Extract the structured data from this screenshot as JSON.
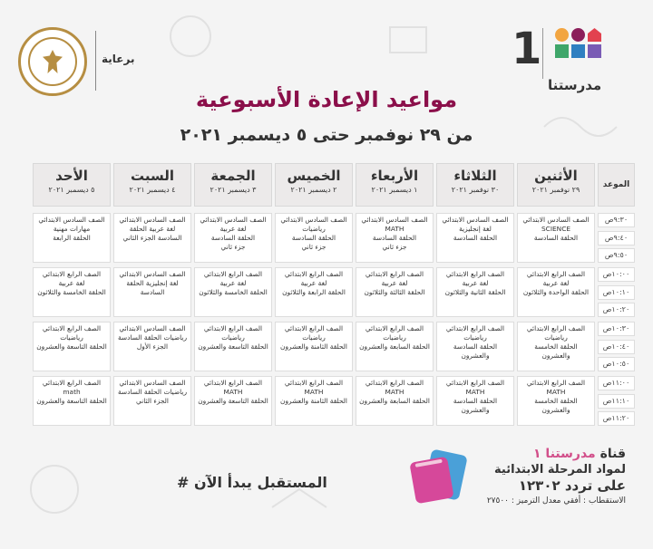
{
  "header": {
    "sponsor_label": "برعاية",
    "brand_word": "مدرستنا",
    "brand_number": "1",
    "title": "مواعيد الإعادة الأسبوعية",
    "subtitle": "من ٢٩ نوفمبر حتى ٥ ديسمبر ٢٠٢١"
  },
  "colors": {
    "title": "#8b0f4a",
    "accent_pink": "#d24f8a",
    "seal_gold": "#b68e42"
  },
  "table": {
    "time_header": "الموعد",
    "days": [
      {
        "name": "الأثنين",
        "date": "٢٩ نوفمبر ٢٠٢١"
      },
      {
        "name": "الثلاثاء",
        "date": "٣٠ نوفمبر ٢٠٢١"
      },
      {
        "name": "الأربعاء",
        "date": "١ ديسمبر ٢٠٢١"
      },
      {
        "name": "الخميس",
        "date": "٢ ديسمبر ٢٠٢١"
      },
      {
        "name": "الجمعة",
        "date": "٣ ديسمبر ٢٠٢١"
      },
      {
        "name": "السبت",
        "date": "٤ ديسمبر ٢٠٢١"
      },
      {
        "name": "الأحد",
        "date": "٥ ديسمبر ٢٠٢١"
      }
    ],
    "slots": [
      {
        "times": [
          "٩:٣٠ص",
          "٩:٤٠ص",
          "٩:٥٠ص"
        ],
        "cells": [
          "الصف السادس الابتدائي\nSCIENCE\nالحلقة السادسة",
          "الصف السادس الابتدائي\nلغة إنجليزية\nالحلقة السادسة",
          "الصف السادس الابتدائي\nMATH\nالحلقة السادسة\nجزء ثاني",
          "الصف السادس الابتدائي\nرياضيات\nالحلقة السادسة\nجزء ثاني",
          "الصف السادس الابتدائي\nلغة عربية\nالحلقة السادسة\nجزء ثاني",
          "الصف السادس الابتدائي\nلغة عربية الحلقة\nالسادسة الجزء الثاني",
          "الصف السادس الابتدائي\nمهارات مهنية\nالحلقة الرابعة"
        ]
      },
      {
        "times": [
          "١٠:٠٠ص",
          "١٠:١٠ص",
          "١٠:٢٠ص"
        ],
        "cells": [
          "الصف الرابع الابتدائي\nلغة عربية\nالحلقة الواحدة والثلاثون",
          "الصف الرابع الابتدائي\nلغة عربية\nالحلقة الثانية والثلاثون",
          "الصف الرابع الابتدائي\nلغة عربية\nالحلقة الثالثة والثلاثون",
          "الصف الرابع الابتدائي\nلغة عربية\nالحلقة الرابعة والثلاثون",
          "الصف الرابع الابتدائي\nلغة عربية\nالحلقة الخامسة والثلاثون",
          "الصف السادس الابتدائي\nلغة إنجليزية الحلقة\nالسادسة",
          "الصف الرابع الابتدائي\nلغة عربية\nالحلقة الخامسة والثلاثون"
        ]
      },
      {
        "times": [
          "١٠:٣٠ص",
          "١٠:٤٠ص",
          "١٠:٥٠ص"
        ],
        "cells": [
          "الصف الرابع الابتدائي\nرياضيات\nالحلقة الخامسة\nوالعشرون",
          "الصف الرابع الابتدائي\nرياضيات\nالحلقة السادسة\nوالعشرون",
          "الصف الرابع الابتدائي\nرياضيات\nالحلقة السابعة والعشرون",
          "الصف الرابع الابتدائي\nرياضيات\nالحلقة الثامنة والعشرون",
          "الصف الرابع الابتدائي\nرياضيات\nالحلقة التاسعة والعشرون",
          "الصف السادس الابتدائي\nرياضيات الحلقة السادسة\nالجزء الأول",
          "الصف الرابع الابتدائي\nرياضيات\nالحلقة التاسعة والعشرون"
        ]
      },
      {
        "times": [
          "١١:٠٠ص",
          "١١:١٠ص",
          "١١:٢٠ص"
        ],
        "cells": [
          "الصف الرابع الابتدائي\nMATH\nالحلقة الخامسة\nوالعشرون",
          "الصف الرابع الابتدائي\nMATH\nالحلقة السادسة\nوالعشرون",
          "الصف الرابع الابتدائي\nMATH\nالحلقة السابعة والعشرون",
          "الصف الرابع الابتدائي\nMATH\nالحلقة الثامنة والعشرون",
          "الصف الرابع الابتدائي\nMATH\nالحلقة التاسعة والعشرون",
          "الصف السادس الابتدائي\nرياضيات الحلقة السادسة\nالجزء الثاني",
          "الصف الرابع الابتدائي\nmath\nالحلقة التاسعة والعشرون"
        ]
      }
    ]
  },
  "footer": {
    "hashtag": "# المستقبل يبدأ الآن",
    "channel_prefix": "قناة",
    "channel_name": "مدرستنا ١",
    "line2": "لمواد المرحلة الابتدائية",
    "line3": "على تردد ١٢٣٠٢",
    "line4": "الاستقطاب : أفقي معدل الترميز : ٢٧٥٠٠"
  }
}
